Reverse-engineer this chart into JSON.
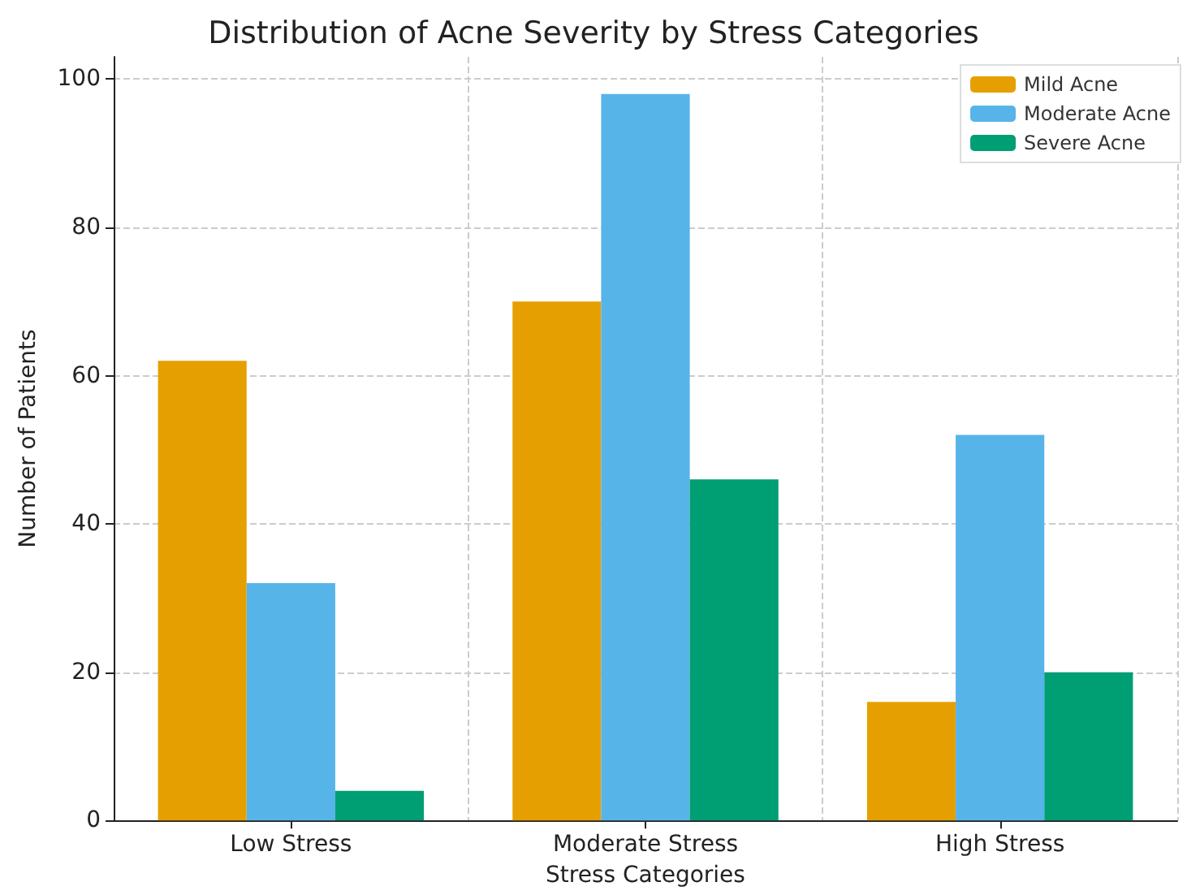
{
  "chart_data": {
    "type": "bar",
    "title": "Distribution of Acne Severity by Stress Categories",
    "xlabel": "Stress Categories",
    "ylabel": "Number of Patients",
    "categories": [
      "Low Stress",
      "Moderate Stress",
      "High Stress"
    ],
    "series": [
      {
        "name": "Mild Acne",
        "color": "#e69f00",
        "values": [
          62,
          70,
          16
        ]
      },
      {
        "name": "Moderate Acne",
        "color": "#56b4e9",
        "values": [
          32,
          98,
          52
        ]
      },
      {
        "name": "Severe Acne",
        "color": "#009e73",
        "values": [
          4,
          46,
          20
        ]
      }
    ],
    "ylim": [
      0,
      103
    ],
    "yticks": [
      0,
      20,
      40,
      60,
      80,
      100
    ],
    "grid": true,
    "legend": "top right"
  }
}
